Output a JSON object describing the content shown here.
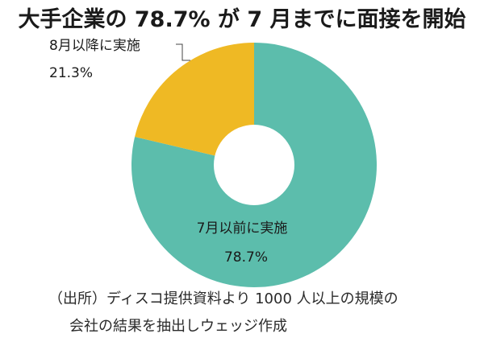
{
  "title": "大手企業の 78.7% が 7 月までに面接を開始",
  "chart_data": {
    "type": "pie",
    "variant": "donut",
    "categories": [
      "7月以前に実施",
      "8月以降に実施"
    ],
    "values": [
      78.7,
      21.3
    ],
    "value_labels": [
      "78.7%",
      "21.3%"
    ],
    "colors": [
      "#5cbdac",
      "#efb924"
    ]
  },
  "source": {
    "line1": "（出所）ディスコ提供資料より 1000 人以上の規模の",
    "line2": "会社の結果を抽出しウェッジ作成"
  }
}
